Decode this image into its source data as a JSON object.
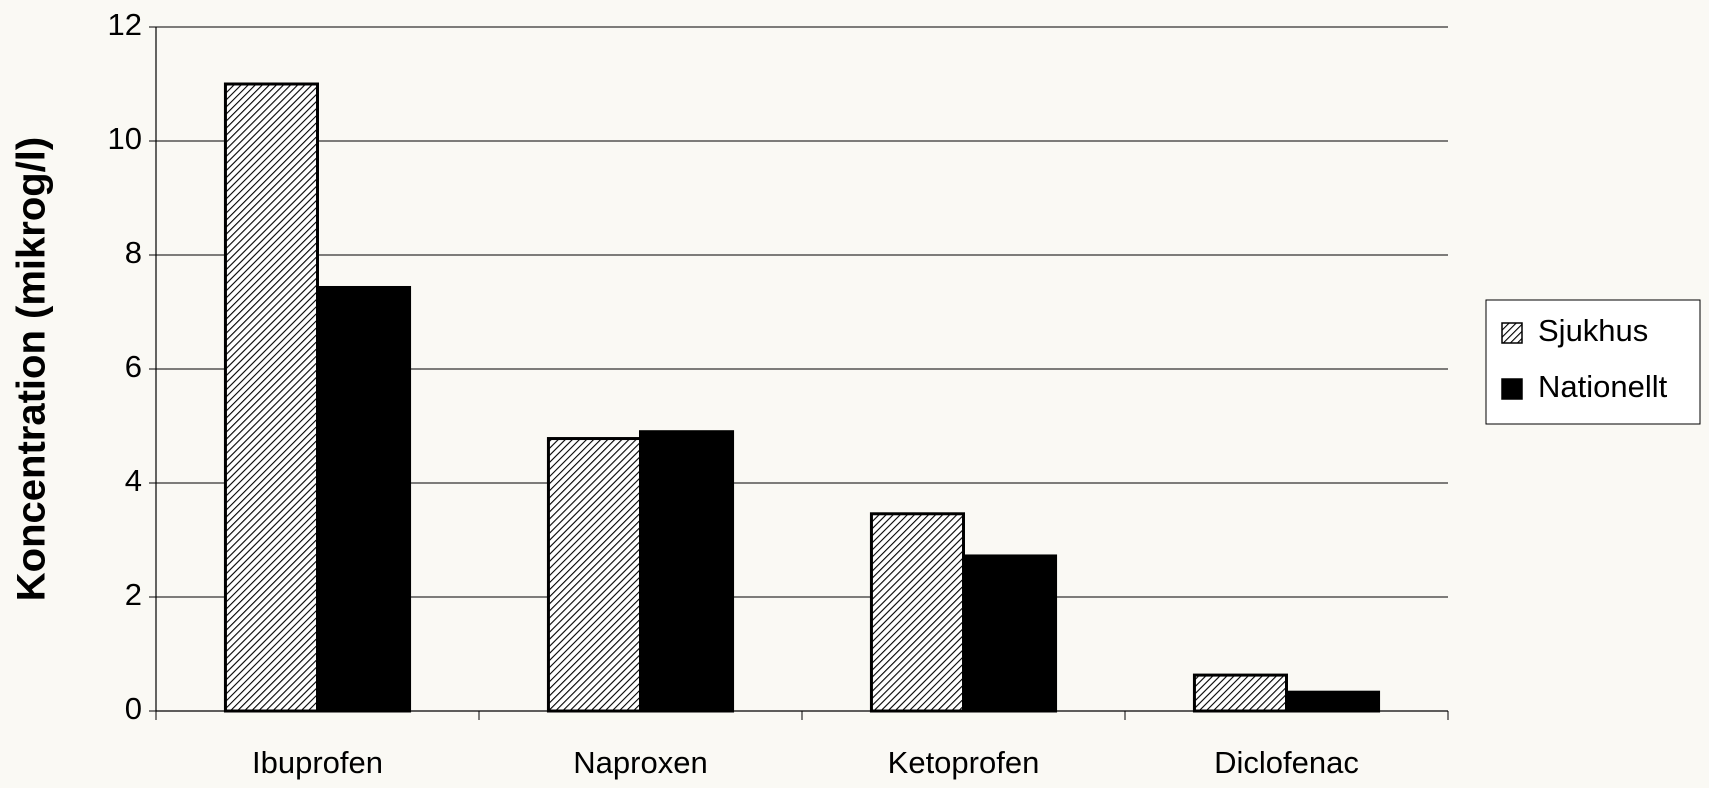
{
  "chart_data": {
    "type": "bar",
    "y_label": "Koncentration (mikrog/l)",
    "categories": [
      "Ibuprofen",
      "Naproxen",
      "Ketoprofen",
      "Diclofenac"
    ],
    "series": [
      {
        "name": "Sjukhus",
        "color": "#000000",
        "pattern": "diagonal-hatch",
        "values": [
          11.0,
          4.78,
          3.46,
          0.63
        ]
      },
      {
        "name": "Nationellt",
        "color": "#000000",
        "values": [
          7.43,
          4.9,
          2.72,
          0.33
        ]
      }
    ],
    "ylim": [
      0,
      12
    ],
    "yticks": [
      0,
      2,
      4,
      6,
      8,
      10,
      12
    ],
    "grid": true,
    "legend": "right"
  }
}
